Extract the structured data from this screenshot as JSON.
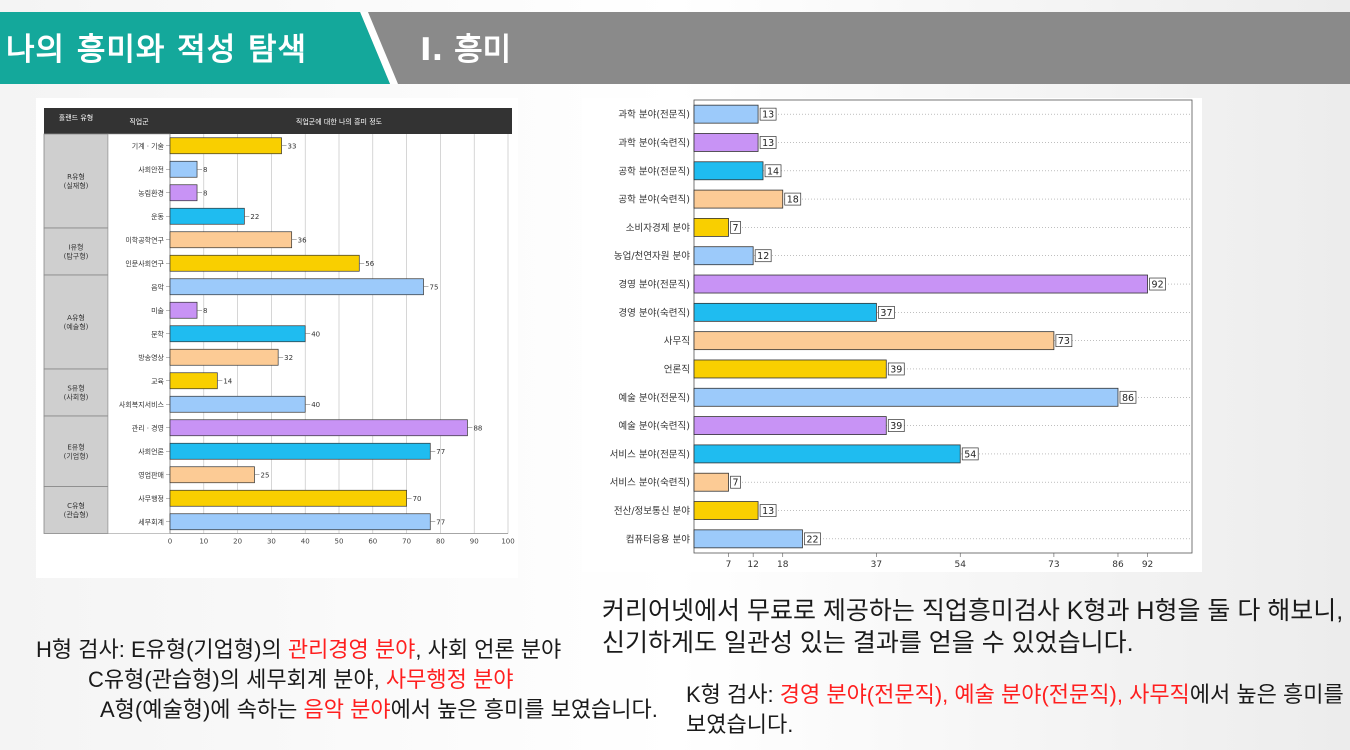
{
  "header": {
    "title": "나의 흥미와 적성 탐색",
    "section": "Ⅰ. 흥미"
  },
  "colors": {
    "header_bar": "#8a8a8a",
    "title_tab": "#14a89b",
    "highlight": "#ff1f1f",
    "yellow": "#f9cf00",
    "lightblue": "#9ccafa",
    "purple": "#c893f5",
    "cyan": "#1fbcf0",
    "peach": "#fccb95"
  },
  "chart_data": [
    {
      "type": "bar",
      "orientation": "horizontal",
      "title": "직업군에 대한 나의 흥미 정도",
      "header_group": "홀랜드 유형",
      "header_category": "직업군",
      "xlim": [
        0,
        100
      ],
      "xticks": [
        0,
        10,
        20,
        30,
        40,
        50,
        60,
        70,
        80,
        90,
        100
      ],
      "groups": [
        {
          "label": "R유형 (실재형)",
          "count": 4
        },
        {
          "label": "I유형 (탐구형)",
          "count": 2
        },
        {
          "label": "A유형 (예술형)",
          "count": 4
        },
        {
          "label": "S유형 (사회형)",
          "count": 2
        },
        {
          "label": "E유형 (기업형)",
          "count": 3
        },
        {
          "label": "C유형 (관습형)",
          "count": 2
        }
      ],
      "categories": [
        "기계ㆍ기술",
        "사회안전",
        "농림환경",
        "운동",
        "이학공학연구",
        "인문사회연구",
        "음악",
        "미술",
        "문학",
        "방송영상",
        "교육",
        "사회복지서비스",
        "관리ㆍ경영",
        "사회언론",
        "영업판매",
        "사무행정",
        "세무회계"
      ],
      "values": [
        33,
        8,
        8,
        22,
        36,
        56,
        75,
        8,
        40,
        32,
        14,
        40,
        88,
        77,
        25,
        70,
        77
      ],
      "value_labels": [
        "33",
        "8",
        "8",
        "22",
        "36",
        "56",
        "75",
        "8",
        "40",
        "32",
        "14",
        "40",
        "88",
        "77",
        "25",
        "70",
        "77"
      ],
      "colors": [
        "yellow",
        "lightblue",
        "purple",
        "cyan",
        "peach",
        "yellow",
        "lightblue",
        "purple",
        "cyan",
        "peach",
        "yellow",
        "lightblue",
        "purple",
        "cyan",
        "peach",
        "yellow",
        "lightblue"
      ]
    },
    {
      "type": "bar",
      "orientation": "horizontal",
      "xlim": [
        0,
        100
      ],
      "xticks": [
        7,
        12,
        18,
        37,
        54,
        73,
        86,
        92
      ],
      "categories": [
        "과학 분야(전문직)",
        "과학 분야(숙련직)",
        "공학 분야(전문직)",
        "공학 분야(숙련직)",
        "소비자경제 분야",
        "농업/천연자원 분야",
        "경영 분야(전문직)",
        "경영 분야(숙련직)",
        "사무직",
        "언론직",
        "예술 분야(전문직)",
        "예술 분야(숙련직)",
        "서비스 분야(전문직)",
        "서비스 분야(숙련직)",
        "전산/정보통신 분야",
        "컴퓨터응용 분야"
      ],
      "values": [
        13,
        13,
        14,
        18,
        7,
        12,
        92,
        37,
        73,
        39,
        86,
        39,
        54,
        7,
        13,
        22
      ],
      "value_labels": [
        "13",
        "13",
        "14",
        "18",
        "7",
        "12",
        "92",
        "37",
        "73",
        "39",
        "86",
        "39",
        "54",
        "7",
        "13",
        "22"
      ],
      "colors": [
        "lightblue",
        "purple",
        "cyan",
        "peach",
        "yellow",
        "lightblue",
        "purple",
        "cyan",
        "peach",
        "yellow",
        "lightblue",
        "purple",
        "cyan",
        "peach",
        "yellow",
        "lightblue"
      ]
    }
  ],
  "text": {
    "intro_line1": "커리어넷에서 무료로 제공하는 직업흥미검사 K형과 H형을 둘 다 해보니,",
    "intro_line2": "신기하게도 일관성 있는 결과를 얻을 수 있었습니다.",
    "h_label": "H형 검사: E유형(기업형)의 ",
    "h_red1": "관리경영 분야",
    "h_rest1": ", 사회 언론 분야",
    "h_line2_a": "C유형(관습형)의 세무회계 분야, ",
    "h_red2": "사무행정 분야",
    "h_line3_a": "A형(예술형)에 속하는 ",
    "h_red3": "음악 분야",
    "h_line3_b": "에서 높은 흥미를 보였습니다.",
    "k_label": "K형 검사: ",
    "k_red": "경영 분야(전문직), 예술 분야(전문직), 사무직",
    "k_rest": "에서 높은 흥미를",
    "k_line2": "보였습니다."
  }
}
